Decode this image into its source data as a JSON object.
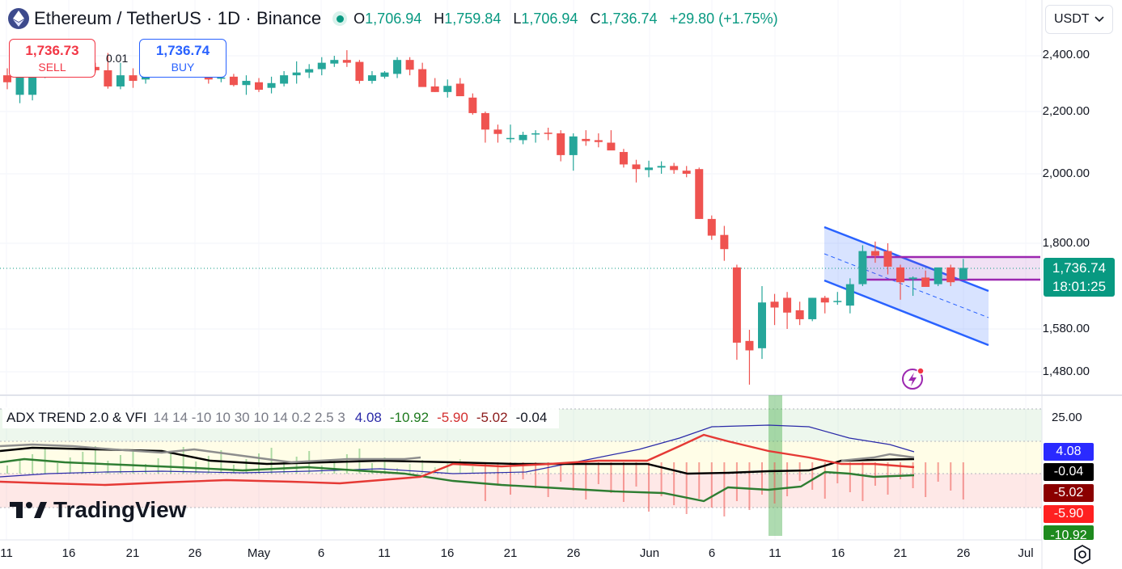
{
  "header": {
    "symbol_title": "Ethereum / TetherUS · 1D · Binance",
    "open_label": "O",
    "open_value": "1,706.94",
    "high_label": "H",
    "high_value": "1,759.84",
    "low_label": "L",
    "low_value": "1,706.94",
    "close_label": "C",
    "close_value": "1,736.74",
    "change_value": "+29.80 (+1.75%)",
    "currency": "USDT"
  },
  "trade": {
    "sell_price": "1,736.73",
    "sell_label": "SELL",
    "spread": "0.01",
    "buy_price": "1,736.74",
    "buy_label": "BUY"
  },
  "price_axis": {
    "labels": [
      "2,400.00",
      "2,200.00",
      "2,000.00",
      "1,800.00",
      "1,580.00",
      "1,480.00"
    ],
    "last_price": "1,736.74",
    "countdown": "18:01:25"
  },
  "indicator": {
    "name": "ADX TREND 2.0 & VFI",
    "params": "14 14 -10 10 30 10 14 0.2 2.5 3",
    "values": [
      {
        "text": "4.08",
        "color": "#2a2aa8"
      },
      {
        "text": "-10.92",
        "color": "#1e7a1e"
      },
      {
        "text": "-5.90",
        "color": "#d32f2f"
      },
      {
        "text": "-5.02",
        "color": "#8b1a1a"
      },
      {
        "text": "-0.04",
        "color": "#131722"
      }
    ],
    "axis_label": "25.00",
    "tags": [
      {
        "text": "4.08",
        "color": "#2a2aff"
      },
      {
        "text": "-0.04",
        "color": "#000000"
      },
      {
        "text": "-5.02",
        "color": "#8b0000"
      },
      {
        "text": "-5.90",
        "color": "#ff2020"
      },
      {
        "text": "-10.92",
        "color": "#1e8a1e"
      }
    ]
  },
  "time_axis": [
    "11",
    "16",
    "21",
    "26",
    "May",
    "6",
    "11",
    "16",
    "21",
    "26",
    "Jun",
    "6",
    "11",
    "16",
    "21",
    "26",
    "Jul"
  ],
  "branding": {
    "logo_text": "TradingView"
  },
  "colors": {
    "up": "#26a69a",
    "down": "#ef5350",
    "accent": "#2962ff",
    "channel": "#2962ff",
    "range_box": "#9c27b0"
  },
  "icons": [
    "ethereum-icon",
    "market-open-icon",
    "chevron-down-icon",
    "settings-gear-icon",
    "alert-flash-icon"
  ],
  "chart_data": {
    "type": "candlestick",
    "symbol": "Ethereum / TetherUS",
    "interval": "1D",
    "exchange": "Binance",
    "candles_ohlc": [
      [
        2330,
        2355,
        2280,
        2305
      ],
      [
        2260,
        2360,
        2230,
        2345
      ],
      [
        2260,
        2380,
        2240,
        2350
      ],
      [
        2340,
        2395,
        2320,
        2345
      ],
      [
        2345,
        2380,
        2340,
        2360
      ],
      [
        2370,
        2400,
        2330,
        2390
      ],
      [
        2360,
        2440,
        2340,
        2362
      ],
      [
        2360,
        2375,
        2340,
        2348
      ],
      [
        2348,
        2410,
        2282,
        2290
      ],
      [
        2290,
        2375,
        2280,
        2330
      ],
      [
        2330,
        2355,
        2285,
        2310
      ],
      [
        2315,
        2385,
        2300,
        2365
      ],
      [
        2362,
        2380,
        2330,
        2348
      ],
      [
        2348,
        2375,
        2330,
        2362
      ],
      [
        2365,
        2380,
        2330,
        2335
      ],
      [
        2338,
        2380,
        2330,
        2342
      ],
      [
        2342,
        2350,
        2300,
        2315
      ],
      [
        2318,
        2335,
        2305,
        2322
      ],
      [
        2325,
        2335,
        2290,
        2295
      ],
      [
        2295,
        2330,
        2260,
        2310
      ],
      [
        2305,
        2320,
        2270,
        2278
      ],
      [
        2285,
        2325,
        2265,
        2302
      ],
      [
        2300,
        2345,
        2290,
        2330
      ],
      [
        2330,
        2380,
        2300,
        2340
      ],
      [
        2340,
        2370,
        2320,
        2352
      ],
      [
        2352,
        2395,
        2330,
        2375
      ],
      [
        2372,
        2400,
        2360,
        2385
      ],
      [
        2385,
        2420,
        2360,
        2375
      ],
      [
        2378,
        2385,
        2300,
        2310
      ],
      [
        2310,
        2345,
        2300,
        2330
      ],
      [
        2325,
        2345,
        2318,
        2340
      ],
      [
        2335,
        2395,
        2320,
        2385
      ],
      [
        2385,
        2395,
        2330,
        2350
      ],
      [
        2352,
        2375,
        2290,
        2288
      ],
      [
        2290,
        2320,
        2270,
        2270
      ],
      [
        2270,
        2315,
        2250,
        2292
      ],
      [
        2300,
        2320,
        2255,
        2255
      ],
      [
        2250,
        2265,
        2190,
        2195
      ],
      [
        2195,
        2200,
        2100,
        2142
      ],
      [
        2142,
        2158,
        2100,
        2128
      ],
      [
        2115,
        2158,
        2100,
        2115
      ],
      [
        2108,
        2135,
        2095,
        2125
      ],
      [
        2128,
        2140,
        2100,
        2130
      ],
      [
        2132,
        2148,
        2108,
        2128
      ],
      [
        2130,
        2140,
        2040,
        2060
      ],
      [
        2060,
        2130,
        2010,
        2120
      ],
      [
        2112,
        2140,
        2090,
        2105
      ],
      [
        2108,
        2130,
        2085,
        2102
      ],
      [
        2100,
        2140,
        2080,
        2075
      ],
      [
        2070,
        2080,
        2020,
        2030
      ],
      [
        2030,
        2045,
        1975,
        2015
      ],
      [
        2012,
        2042,
        1990,
        2020
      ],
      [
        2020,
        2040,
        2000,
        2025
      ],
      [
        2025,
        2035,
        2000,
        2012
      ],
      [
        2010,
        2025,
        1990,
        2000
      ],
      [
        2015,
        2020,
        1870,
        1870
      ],
      [
        1870,
        1880,
        1810,
        1822
      ],
      [
        1824,
        1850,
        1755,
        1785
      ],
      [
        1738,
        1745,
        1508,
        1548
      ],
      [
        1552,
        1578,
        1450,
        1530
      ],
      [
        1535,
        1690,
        1510,
        1648
      ],
      [
        1650,
        1670,
        1590,
        1635
      ],
      [
        1660,
        1675,
        1580,
        1622
      ],
      [
        1628,
        1650,
        1590,
        1605
      ],
      [
        1605,
        1660,
        1600,
        1660
      ],
      [
        1660,
        1665,
        1620,
        1648
      ],
      [
        1650,
        1675,
        1642,
        1652
      ],
      [
        1640,
        1710,
        1620,
        1695
      ],
      [
        1695,
        1795,
        1690,
        1780
      ],
      [
        1780,
        1805,
        1750,
        1768
      ],
      [
        1780,
        1800,
        1720,
        1740
      ],
      [
        1738,
        1745,
        1655,
        1700
      ],
      [
        1708,
        1715,
        1665,
        1712
      ],
      [
        1712,
        1730,
        1690,
        1688
      ],
      [
        1695,
        1735,
        1690,
        1738
      ],
      [
        1738,
        1745,
        1690,
        1700
      ],
      [
        1706.94,
        1759.84,
        1706.94,
        1736.74
      ]
    ],
    "price_axis_ticks": [
      2400,
      2200,
      2000,
      1800,
      1580,
      1480
    ],
    "x_tick_labels": [
      "11",
      "16",
      "21",
      "26",
      "May",
      "6",
      "11",
      "16",
      "21",
      "26",
      "Jun",
      "6",
      "11",
      "16",
      "21",
      "26",
      "Jul"
    ],
    "last_price": 1736.74,
    "annotations": [
      "descending channel (blue)",
      "horizontal range box 1,705–1,765 (purple)"
    ]
  }
}
